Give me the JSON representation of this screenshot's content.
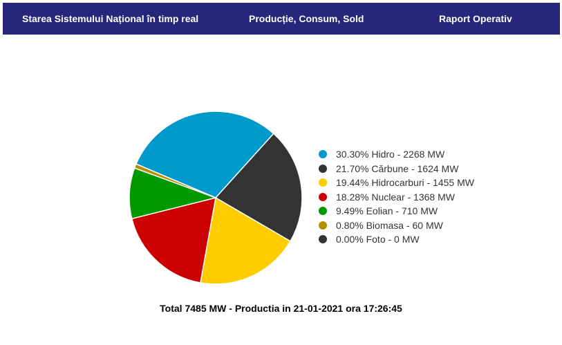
{
  "nav": {
    "items": [
      {
        "label": "Starea Sistemului Național în timp real"
      },
      {
        "label": "Producție, Consum, Sold"
      },
      {
        "label": "Raport Operativ"
      }
    ]
  },
  "chart_data": {
    "type": "pie",
    "title": "",
    "slices": [
      {
        "name": "Hidro",
        "percent": 30.3,
        "value": 2268,
        "unit": "MW",
        "color": "#0099cc",
        "label": "30.30% Hidro - 2268 MW"
      },
      {
        "name": "Cărbune",
        "percent": 21.7,
        "value": 1624,
        "unit": "MW",
        "color": "#333333",
        "label": "21.70% Cărbune - 1624 MW"
      },
      {
        "name": "Hidrocarburi",
        "percent": 19.44,
        "value": 1455,
        "unit": "MW",
        "color": "#ffcc00",
        "label": "19.44% Hidrocarburi - 1455 MW"
      },
      {
        "name": "Nuclear",
        "percent": 18.28,
        "value": 1368,
        "unit": "MW",
        "color": "#cc0000",
        "label": "18.28% Nuclear - 1368 MW"
      },
      {
        "name": "Eolian",
        "percent": 9.49,
        "value": 710,
        "unit": "MW",
        "color": "#009900",
        "label": "9.49% Eolian - 710 MW"
      },
      {
        "name": "Biomasa",
        "percent": 0.8,
        "value": 60,
        "unit": "MW",
        "color": "#b38f00",
        "label": "0.80% Biomasa - 60 MW"
      },
      {
        "name": "Foto",
        "percent": 0.0,
        "value": 0,
        "unit": "MW",
        "color": "#333333",
        "label": "0.00% Foto - 0 MW"
      }
    ],
    "legend_position": "right"
  },
  "footer": {
    "text": "Total 7485 MW - Productia in 21-01-2021 ora 17:26:45"
  }
}
